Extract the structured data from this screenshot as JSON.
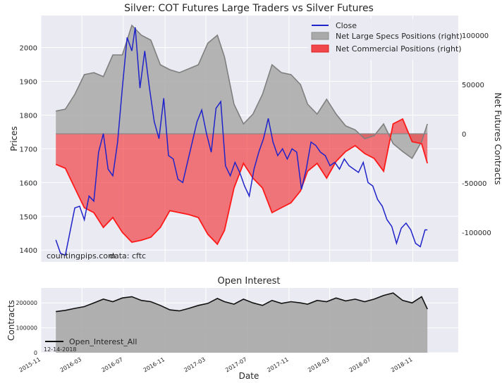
{
  "chart_data": [
    {
      "type": "line",
      "title": "Silver: COT Futures Large Traders vs Silver Futures",
      "ylabel_left": "Prices",
      "ylabel_right": "Net Futures Contracts",
      "ylim_left": [
        1365,
        2095
      ],
      "ylim_right": [
        -130000,
        120000
      ],
      "yticks_left": [
        1400,
        1500,
        1600,
        1700,
        1800,
        1900,
        2000
      ],
      "yticks_right": [
        -100000,
        -50000,
        0,
        50000,
        100000
      ],
      "ytick_labels_right": [
        "-100000",
        "-50000",
        "0",
        "50000",
        "100000"
      ],
      "x_start": "2015-11-01",
      "x_end": "2019-03-15",
      "grid": true,
      "legend_position": "top-right",
      "annotations": [
        "countingpips.com",
        "data: cftc"
      ],
      "series": [
        {
          "name": "Close",
          "axis": "left",
          "color": "#1f23c9",
          "points": [
            [
              "2015-12-15",
              1430
            ],
            [
              "2015-12-29",
              1390
            ],
            [
              "2016-01-12",
              1385
            ],
            [
              "2016-01-26",
              1455
            ],
            [
              "2016-02-09",
              1525
            ],
            [
              "2016-02-23",
              1530
            ],
            [
              "2016-03-08",
              1490
            ],
            [
              "2016-03-22",
              1560
            ],
            [
              "2016-04-05",
              1545
            ],
            [
              "2016-04-19",
              1690
            ],
            [
              "2016-05-03",
              1745
            ],
            [
              "2016-05-17",
              1640
            ],
            [
              "2016-05-31",
              1620
            ],
            [
              "2016-06-14",
              1720
            ],
            [
              "2016-06-28",
              1880
            ],
            [
              "2016-07-12",
              2030
            ],
            [
              "2016-07-26",
              1990
            ],
            [
              "2016-08-05",
              2060
            ],
            [
              "2016-08-19",
              1880
            ],
            [
              "2016-09-02",
              1990
            ],
            [
              "2016-09-16",
              1880
            ],
            [
              "2016-09-30",
              1780
            ],
            [
              "2016-10-14",
              1730
            ],
            [
              "2016-10-28",
              1850
            ],
            [
              "2016-11-11",
              1680
            ],
            [
              "2016-11-25",
              1670
            ],
            [
              "2016-12-09",
              1610
            ],
            [
              "2016-12-23",
              1600
            ],
            [
              "2017-01-06",
              1660
            ],
            [
              "2017-01-20",
              1720
            ],
            [
              "2017-02-03",
              1780
            ],
            [
              "2017-02-17",
              1815
            ],
            [
              "2017-03-03",
              1745
            ],
            [
              "2017-03-17",
              1690
            ],
            [
              "2017-03-31",
              1820
            ],
            [
              "2017-04-14",
              1840
            ],
            [
              "2017-04-28",
              1650
            ],
            [
              "2017-05-12",
              1620
            ],
            [
              "2017-05-26",
              1660
            ],
            [
              "2017-06-09",
              1630
            ],
            [
              "2017-06-23",
              1590
            ],
            [
              "2017-07-07",
              1560
            ],
            [
              "2017-07-21",
              1640
            ],
            [
              "2017-08-04",
              1690
            ],
            [
              "2017-08-18",
              1730
            ],
            [
              "2017-09-01",
              1790
            ],
            [
              "2017-09-15",
              1720
            ],
            [
              "2017-09-29",
              1680
            ],
            [
              "2017-10-13",
              1700
            ],
            [
              "2017-10-27",
              1670
            ],
            [
              "2017-11-10",
              1700
            ],
            [
              "2017-11-24",
              1690
            ],
            [
              "2017-12-08",
              1580
            ],
            [
              "2017-12-22",
              1640
            ],
            [
              "2018-01-05",
              1720
            ],
            [
              "2018-01-19",
              1710
            ],
            [
              "2018-02-02",
              1690
            ],
            [
              "2018-02-16",
              1680
            ],
            [
              "2018-03-02",
              1650
            ],
            [
              "2018-03-16",
              1660
            ],
            [
              "2018-03-30",
              1640
            ],
            [
              "2018-04-13",
              1670
            ],
            [
              "2018-04-27",
              1650
            ],
            [
              "2018-05-11",
              1640
            ],
            [
              "2018-05-25",
              1630
            ],
            [
              "2018-06-08",
              1660
            ],
            [
              "2018-06-22",
              1600
            ],
            [
              "2018-07-06",
              1590
            ],
            [
              "2018-07-20",
              1550
            ],
            [
              "2018-08-03",
              1530
            ],
            [
              "2018-08-17",
              1490
            ],
            [
              "2018-08-31",
              1470
            ],
            [
              "2018-09-14",
              1420
            ],
            [
              "2018-09-28",
              1465
            ],
            [
              "2018-10-12",
              1480
            ],
            [
              "2018-10-26",
              1460
            ],
            [
              "2018-11-09",
              1420
            ],
            [
              "2018-11-23",
              1410
            ],
            [
              "2018-12-07",
              1460
            ],
            [
              "2018-12-14",
              1460
            ]
          ]
        },
        {
          "name": "Net Large Specs Positions (right)",
          "axis": "right",
          "color": "#a9a9a9",
          "points": [
            [
              "2015-12-15",
              23000
            ],
            [
              "2016-01-12",
              25000
            ],
            [
              "2016-02-09",
              40000
            ],
            [
              "2016-03-08",
              60000
            ],
            [
              "2016-04-05",
              62000
            ],
            [
              "2016-05-03",
              58000
            ],
            [
              "2016-05-31",
              80000
            ],
            [
              "2016-06-28",
              80000
            ],
            [
              "2016-07-26",
              110000
            ],
            [
              "2016-08-23",
              100000
            ],
            [
              "2016-09-20",
              95000
            ],
            [
              "2016-10-18",
              70000
            ],
            [
              "2016-11-15",
              65000
            ],
            [
              "2016-12-13",
              62000
            ],
            [
              "2017-01-10",
              66000
            ],
            [
              "2017-02-07",
              70000
            ],
            [
              "2017-03-07",
              92000
            ],
            [
              "2017-04-04",
              100000
            ],
            [
              "2017-04-25",
              78000
            ],
            [
              "2017-05-23",
              30000
            ],
            [
              "2017-06-20",
              10000
            ],
            [
              "2017-07-18",
              20000
            ],
            [
              "2017-08-15",
              40000
            ],
            [
              "2017-09-12",
              70000
            ],
            [
              "2017-10-10",
              62000
            ],
            [
              "2017-11-07",
              60000
            ],
            [
              "2017-12-05",
              50000
            ],
            [
              "2017-12-26",
              30000
            ],
            [
              "2018-01-23",
              20000
            ],
            [
              "2018-02-20",
              35000
            ],
            [
              "2018-03-20",
              20000
            ],
            [
              "2018-04-17",
              8000
            ],
            [
              "2018-05-15",
              4000
            ],
            [
              "2018-06-12",
              -5000
            ],
            [
              "2018-07-10",
              -2000
            ],
            [
              "2018-08-07",
              10000
            ],
            [
              "2018-09-04",
              -10000
            ],
            [
              "2018-10-02",
              -18000
            ],
            [
              "2018-10-30",
              -25000
            ],
            [
              "2018-11-27",
              -8000
            ],
            [
              "2018-12-14",
              10000
            ]
          ]
        },
        {
          "name": "Net Commercial Positions (right)",
          "axis": "right",
          "color": "#f0474a",
          "points": [
            [
              "2015-12-15",
              -31000
            ],
            [
              "2016-01-12",
              -35000
            ],
            [
              "2016-02-09",
              -55000
            ],
            [
              "2016-03-08",
              -75000
            ],
            [
              "2016-04-05",
              -80000
            ],
            [
              "2016-05-03",
              -95000
            ],
            [
              "2016-05-31",
              -85000
            ],
            [
              "2016-06-28",
              -100000
            ],
            [
              "2016-07-26",
              -110000
            ],
            [
              "2016-08-23",
              -108000
            ],
            [
              "2016-09-20",
              -105000
            ],
            [
              "2016-10-18",
              -95000
            ],
            [
              "2016-11-15",
              -78000
            ],
            [
              "2016-12-13",
              -80000
            ],
            [
              "2017-01-10",
              -82000
            ],
            [
              "2017-02-07",
              -85000
            ],
            [
              "2017-03-07",
              -102000
            ],
            [
              "2017-04-04",
              -112000
            ],
            [
              "2017-04-25",
              -98000
            ],
            [
              "2017-05-23",
              -55000
            ],
            [
              "2017-06-20",
              -30000
            ],
            [
              "2017-07-18",
              -45000
            ],
            [
              "2017-08-15",
              -55000
            ],
            [
              "2017-09-12",
              -80000
            ],
            [
              "2017-10-10",
              -75000
            ],
            [
              "2017-11-07",
              -70000
            ],
            [
              "2017-12-05",
              -58000
            ],
            [
              "2017-12-26",
              -38000
            ],
            [
              "2018-01-23",
              -30000
            ],
            [
              "2018-02-20",
              -45000
            ],
            [
              "2018-03-20",
              -28000
            ],
            [
              "2018-04-17",
              -18000
            ],
            [
              "2018-05-15",
              -12000
            ],
            [
              "2018-06-12",
              -20000
            ],
            [
              "2018-07-10",
              -25000
            ],
            [
              "2018-08-07",
              -38000
            ],
            [
              "2018-09-04",
              10000
            ],
            [
              "2018-10-02",
              15000
            ],
            [
              "2018-10-30",
              -8000
            ],
            [
              "2018-11-27",
              -10000
            ],
            [
              "2018-12-14",
              -30000
            ]
          ]
        }
      ]
    },
    {
      "type": "area",
      "title": "Open Interest",
      "xlabel": "Date",
      "ylabel": "Contracts",
      "ylim": [
        0,
        260000
      ],
      "yticks": [
        0,
        100000,
        200000
      ],
      "x_start": "2015-11-01",
      "x_end": "2019-03-15",
      "xtick_labels": [
        "2015-11",
        "2016-03",
        "2016-07",
        "2016-11",
        "2017-03",
        "2017-07",
        "2017-11",
        "2018-03",
        "2018-07",
        "2018-11"
      ],
      "xtick_dates": [
        "2015-11-01",
        "2016-03-01",
        "2016-07-01",
        "2016-11-01",
        "2017-03-01",
        "2017-07-01",
        "2017-11-01",
        "2018-03-01",
        "2018-07-01",
        "2018-11-01"
      ],
      "grid": true,
      "legend_position": "bottom-left",
      "annotation": "12-14-2018",
      "series": [
        {
          "name": "Open_Interest_All",
          "color": "#111111",
          "fill": "#a9a9a9",
          "points": [
            [
              "2015-12-15",
              165000
            ],
            [
              "2016-01-12",
              170000
            ],
            [
              "2016-02-09",
              178000
            ],
            [
              "2016-03-08",
              185000
            ],
            [
              "2016-04-05",
              200000
            ],
            [
              "2016-05-03",
              215000
            ],
            [
              "2016-05-31",
              205000
            ],
            [
              "2016-06-28",
              220000
            ],
            [
              "2016-07-26",
              225000
            ],
            [
              "2016-08-23",
              210000
            ],
            [
              "2016-09-20",
              205000
            ],
            [
              "2016-10-18",
              190000
            ],
            [
              "2016-11-15",
              172000
            ],
            [
              "2016-12-13",
              168000
            ],
            [
              "2017-01-10",
              178000
            ],
            [
              "2017-02-07",
              190000
            ],
            [
              "2017-03-07",
              198000
            ],
            [
              "2017-04-04",
              218000
            ],
            [
              "2017-04-25",
              205000
            ],
            [
              "2017-05-23",
              195000
            ],
            [
              "2017-06-20",
              215000
            ],
            [
              "2017-07-18",
              200000
            ],
            [
              "2017-08-15",
              190000
            ],
            [
              "2017-09-12",
              210000
            ],
            [
              "2017-10-10",
              198000
            ],
            [
              "2017-11-07",
              205000
            ],
            [
              "2017-12-05",
              200000
            ],
            [
              "2017-12-26",
              195000
            ],
            [
              "2018-01-23",
              210000
            ],
            [
              "2018-02-20",
              205000
            ],
            [
              "2018-03-20",
              220000
            ],
            [
              "2018-04-17",
              208000
            ],
            [
              "2018-05-15",
              215000
            ],
            [
              "2018-06-12",
              205000
            ],
            [
              "2018-07-10",
              215000
            ],
            [
              "2018-08-07",
              230000
            ],
            [
              "2018-09-04",
              240000
            ],
            [
              "2018-10-02",
              210000
            ],
            [
              "2018-10-30",
              200000
            ],
            [
              "2018-11-27",
              225000
            ],
            [
              "2018-12-14",
              175000
            ]
          ]
        }
      ]
    }
  ]
}
